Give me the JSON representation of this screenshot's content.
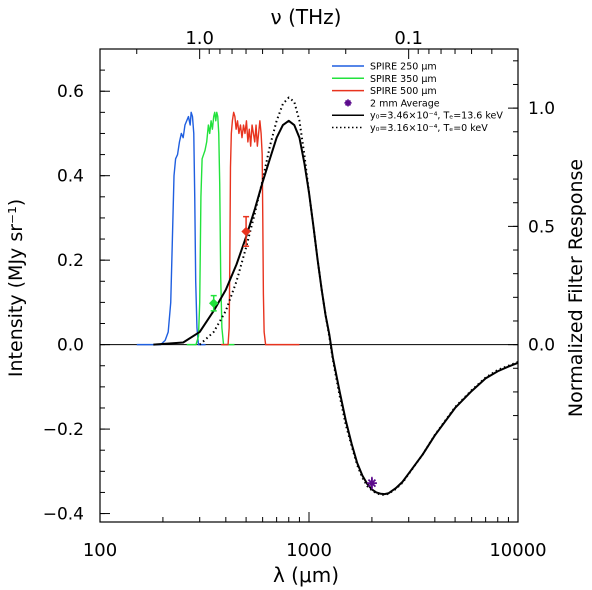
{
  "chart_data": {
    "type": "line",
    "xscale": "log",
    "xlim": [
      100,
      10000
    ],
    "ylim": [
      -0.42,
      0.7
    ],
    "xlabel": "λ (μm)",
    "ylabel": "Intensity (MJy sr⁻¹)",
    "y2label": "Normalized Filter Response",
    "top_axis_label": "ν (THz)",
    "top_ticks": [
      {
        "label": "1.0",
        "wavelength_um": 299.8
      },
      {
        "label": "0.1",
        "wavelength_um": 2998
      }
    ],
    "x_ticks": [
      {
        "value": 100,
        "label": "100"
      },
      {
        "value": 1000,
        "label": "1000"
      },
      {
        "value": 10000,
        "label": "10000"
      }
    ],
    "y_ticks": [
      {
        "value": -0.4,
        "label": "−0.4"
      },
      {
        "value": -0.2,
        "label": "−0.2"
      },
      {
        "value": 0.0,
        "label": "0.0"
      },
      {
        "value": 0.2,
        "label": "0.2"
      },
      {
        "value": 0.4,
        "label": "0.4"
      },
      {
        "value": 0.6,
        "label": "0.6"
      }
    ],
    "y2_ticks": [
      {
        "value": 0.0,
        "label": "0.0",
        "at_y": 0.0
      },
      {
        "value": 0.5,
        "label": "0.5",
        "at_y": 0.28
      },
      {
        "value": 1.0,
        "label": "1.0",
        "at_y": 0.56
      }
    ],
    "filters": [
      {
        "name": "SPIRE 250 μm",
        "color": "#1f5fe0",
        "points": [
          [
            150,
            0
          ],
          [
            195,
            0
          ],
          [
            205,
            0.01
          ],
          [
            212,
            0.03
          ],
          [
            218,
            0.1
          ],
          [
            222,
            0.25
          ],
          [
            226,
            0.4
          ],
          [
            230,
            0.44
          ],
          [
            235,
            0.45
          ],
          [
            240,
            0.48
          ],
          [
            245,
            0.5
          ],
          [
            250,
            0.49
          ],
          [
            255,
            0.52
          ],
          [
            260,
            0.53
          ],
          [
            265,
            0.54
          ],
          [
            270,
            0.52
          ],
          [
            273,
            0.55
          ],
          [
            277,
            0.54
          ],
          [
            281,
            0.5
          ],
          [
            284,
            0.35
          ],
          [
            287,
            0.15
          ],
          [
            291,
            0.04
          ],
          [
            296,
            0.0
          ],
          [
            320,
            0
          ]
        ]
      },
      {
        "name": "SPIRE 350 μm",
        "color": "#22e23c",
        "points": [
          [
            260,
            0
          ],
          [
            288,
            0
          ],
          [
            296,
            0.02
          ],
          [
            300,
            0.1
          ],
          [
            304,
            0.35
          ],
          [
            308,
            0.44
          ],
          [
            313,
            0.45
          ],
          [
            318,
            0.46
          ],
          [
            324,
            0.48
          ],
          [
            330,
            0.52
          ],
          [
            335,
            0.5
          ],
          [
            340,
            0.53
          ],
          [
            345,
            0.51
          ],
          [
            350,
            0.54
          ],
          [
            354,
            0.55
          ],
          [
            358,
            0.53
          ],
          [
            362,
            0.55
          ],
          [
            366,
            0.54
          ],
          [
            370,
            0.5
          ],
          [
            374,
            0.38
          ],
          [
            378,
            0.16
          ],
          [
            383,
            0.04
          ],
          [
            390,
            0.0
          ],
          [
            440,
            0
          ]
        ]
      },
      {
        "name": "SPIRE 500 μm",
        "color": "#e8331e",
        "points": [
          [
            380,
            0
          ],
          [
            410,
            0
          ],
          [
            415,
            0.04
          ],
          [
            418,
            0.2
          ],
          [
            421,
            0.42
          ],
          [
            425,
            0.5
          ],
          [
            430,
            0.53
          ],
          [
            436,
            0.55
          ],
          [
            442,
            0.54
          ],
          [
            448,
            0.51
          ],
          [
            455,
            0.53
          ],
          [
            462,
            0.5
          ],
          [
            470,
            0.52
          ],
          [
            478,
            0.49
          ],
          [
            486,
            0.52
          ],
          [
            494,
            0.5
          ],
          [
            502,
            0.53
          ],
          [
            510,
            0.48
          ],
          [
            518,
            0.51
          ],
          [
            526,
            0.47
          ],
          [
            534,
            0.52
          ],
          [
            542,
            0.5
          ],
          [
            550,
            0.48
          ],
          [
            558,
            0.52
          ],
          [
            566,
            0.47
          ],
          [
            574,
            0.5
          ],
          [
            582,
            0.53
          ],
          [
            590,
            0.5
          ],
          [
            597,
            0.45
          ],
          [
            601,
            0.3
          ],
          [
            605,
            0.12
          ],
          [
            610,
            0.03
          ],
          [
            620,
            0.0
          ],
          [
            900,
            0
          ]
        ]
      }
    ],
    "averages": {
      "name": "2 mm Average",
      "marker": "asterisk",
      "color": "#5b0a8c",
      "points": [
        {
          "x": 2000,
          "y": -0.328,
          "err": 0.015
        }
      ]
    },
    "band_points": [
      {
        "x": 350,
        "y": 0.098,
        "err": 0.018,
        "color": "#22e23c"
      },
      {
        "x": 500,
        "y": 0.268,
        "err": 0.035,
        "color": "#e8331e"
      }
    ],
    "models": [
      {
        "name": "y₀=3.46×10⁻⁴, Tₑ=13.6 keV",
        "style": "solid",
        "color": "#000000",
        "points": [
          [
            180,
            0
          ],
          [
            250,
            0.005
          ],
          [
            300,
            0.03
          ],
          [
            350,
            0.08
          ],
          [
            400,
            0.13
          ],
          [
            450,
            0.19
          ],
          [
            500,
            0.255
          ],
          [
            550,
            0.32
          ],
          [
            600,
            0.385
          ],
          [
            650,
            0.44
          ],
          [
            700,
            0.49
          ],
          [
            750,
            0.52
          ],
          [
            800,
            0.53
          ],
          [
            850,
            0.52
          ],
          [
            900,
            0.49
          ],
          [
            950,
            0.43
          ],
          [
            1000,
            0.36
          ],
          [
            1050,
            0.28
          ],
          [
            1100,
            0.2
          ],
          [
            1150,
            0.13
          ],
          [
            1200,
            0.07
          ],
          [
            1250,
            0.025
          ],
          [
            1300,
            -0.03
          ],
          [
            1400,
            -0.11
          ],
          [
            1500,
            -0.18
          ],
          [
            1600,
            -0.235
          ],
          [
            1700,
            -0.28
          ],
          [
            1800,
            -0.31
          ],
          [
            1900,
            -0.33
          ],
          [
            2000,
            -0.343
          ],
          [
            2100,
            -0.35
          ],
          [
            2200,
            -0.353
          ],
          [
            2300,
            -0.354
          ],
          [
            2400,
            -0.352
          ],
          [
            2600,
            -0.34
          ],
          [
            2800,
            -0.325
          ],
          [
            3000,
            -0.305
          ],
          [
            3500,
            -0.26
          ],
          [
            4000,
            -0.215
          ],
          [
            5000,
            -0.15
          ],
          [
            6000,
            -0.11
          ],
          [
            7000,
            -0.08
          ],
          [
            8000,
            -0.063
          ],
          [
            9000,
            -0.052
          ],
          [
            10000,
            -0.043
          ]
        ]
      },
      {
        "name": "y₀=3.16×10⁻⁴, Tₑ=0 keV",
        "style": "dotted",
        "color": "#000000",
        "points": [
          [
            300,
            0
          ],
          [
            350,
            0.03
          ],
          [
            400,
            0.08
          ],
          [
            450,
            0.15
          ],
          [
            500,
            0.23
          ],
          [
            550,
            0.31
          ],
          [
            600,
            0.39
          ],
          [
            650,
            0.47
          ],
          [
            700,
            0.53
          ],
          [
            750,
            0.57
          ],
          [
            800,
            0.585
          ],
          [
            850,
            0.575
          ],
          [
            900,
            0.53
          ],
          [
            950,
            0.45
          ],
          [
            1000,
            0.36
          ],
          [
            1050,
            0.28
          ],
          [
            1100,
            0.2
          ],
          [
            1150,
            0.13
          ],
          [
            1200,
            0.07
          ],
          [
            1250,
            0.02
          ],
          [
            1300,
            -0.035
          ],
          [
            1400,
            -0.12
          ],
          [
            1500,
            -0.19
          ],
          [
            1600,
            -0.24
          ],
          [
            1700,
            -0.285
          ],
          [
            1800,
            -0.315
          ],
          [
            1900,
            -0.335
          ],
          [
            2000,
            -0.345
          ],
          [
            2100,
            -0.352
          ],
          [
            2200,
            -0.355
          ],
          [
            2300,
            -0.356
          ],
          [
            2400,
            -0.353
          ],
          [
            2600,
            -0.342
          ],
          [
            2800,
            -0.327
          ],
          [
            3000,
            -0.306
          ],
          [
            3500,
            -0.26
          ],
          [
            4000,
            -0.214
          ],
          [
            5000,
            -0.148
          ],
          [
            6000,
            -0.108
          ],
          [
            7000,
            -0.078
          ],
          [
            8000,
            -0.06
          ],
          [
            9000,
            -0.05
          ],
          [
            10000,
            -0.041
          ]
        ]
      }
    ],
    "legend": {
      "placement": "top-right",
      "entries": [
        "SPIRE 250 μm",
        "SPIRE 350 μm",
        "SPIRE 500 μm",
        "2 mm Average",
        "y₀=3.46×10⁻⁴, Tₑ=13.6 keV",
        "y₀=3.16×10⁻⁴, Tₑ=0 keV"
      ]
    }
  }
}
